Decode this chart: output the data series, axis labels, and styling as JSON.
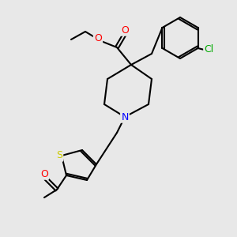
{
  "background_color": "#e8e8e8",
  "bond_color": "#000000",
  "bond_width": 1.5,
  "atom_colors": {
    "O": "#ff0000",
    "N": "#0000ff",
    "S": "#cccc00",
    "Cl": "#00aa00",
    "C": "#000000"
  }
}
